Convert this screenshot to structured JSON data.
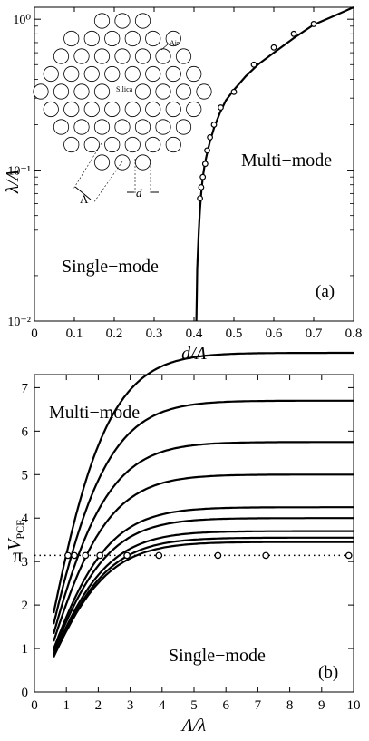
{
  "chart_data": [
    {
      "panel": "(a)",
      "type": "line",
      "x_ticks": [
        "0",
        "0.1",
        "0.2",
        "0.3",
        "0.4",
        "0.5",
        "0.6",
        "0.7",
        "0.8"
      ],
      "y_ticks": [
        "10⁻²",
        "10⁻¹",
        "10⁰"
      ],
      "xlabel": "d/Λ",
      "ylabel": "λ/Λ",
      "xlim": [
        0,
        0.8
      ],
      "ylim": [
        0.01,
        1.2
      ],
      "y_scale": "log",
      "curve": {
        "x": [
          0.406,
          0.407,
          0.408,
          0.41,
          0.412,
          0.415,
          0.418,
          0.422,
          0.427,
          0.433,
          0.44,
          0.45,
          0.465,
          0.48,
          0.5,
          0.53,
          0.56,
          0.6,
          0.65,
          0.7,
          0.75,
          0.8
        ],
        "y": [
          0.01,
          0.015,
          0.022,
          0.03,
          0.04,
          0.055,
          0.07,
          0.09,
          0.11,
          0.13,
          0.155,
          0.19,
          0.24,
          0.29,
          0.34,
          0.42,
          0.5,
          0.6,
          0.75,
          0.92,
          1.05,
          1.2
        ]
      },
      "points": {
        "x": [
          0.415,
          0.418,
          0.422,
          0.428,
          0.433,
          0.44,
          0.45,
          0.467,
          0.5,
          0.55,
          0.6,
          0.65,
          0.7
        ],
        "y": [
          0.065,
          0.077,
          0.09,
          0.11,
          0.135,
          0.165,
          0.2,
          0.26,
          0.33,
          0.5,
          0.65,
          0.8,
          0.93
        ]
      },
      "region_labels": {
        "multi": "Multi−mode",
        "single": "Single−mode"
      },
      "inset": {
        "air": "Air",
        "silica": "Silica",
        "pitch": "Λ",
        "diameter": "d"
      }
    },
    {
      "panel": "(b)",
      "type": "line",
      "x_ticks": [
        "0",
        "1",
        "2",
        "3",
        "4",
        "5",
        "6",
        "7",
        "8",
        "9",
        "10"
      ],
      "y_ticks": [
        "0",
        "1",
        "2",
        "3",
        "4",
        "5",
        "6",
        "7"
      ],
      "pi_label": "π",
      "xlabel": "Λ/λ",
      "ylabel_main": "V",
      "ylabel_sub": "PCF",
      "xlim": [
        0,
        10
      ],
      "ylim": [
        0,
        7.3
      ],
      "reference_line_y": 3.14159,
      "series_asymptotes": [
        7.8,
        6.7,
        5.75,
        5.0,
        4.25,
        4.0,
        3.7,
        3.55,
        3.45
      ],
      "points": {
        "x": [
          1.05,
          1.25,
          1.6,
          2.05,
          2.9,
          3.9,
          5.75,
          7.25,
          9.85
        ],
        "y": [
          3.14,
          3.14,
          3.14,
          3.14,
          3.14,
          3.14,
          3.14,
          3.14,
          3.14
        ]
      },
      "region_labels": {
        "multi": "Multi−mode",
        "single": "Single−mode"
      }
    }
  ]
}
